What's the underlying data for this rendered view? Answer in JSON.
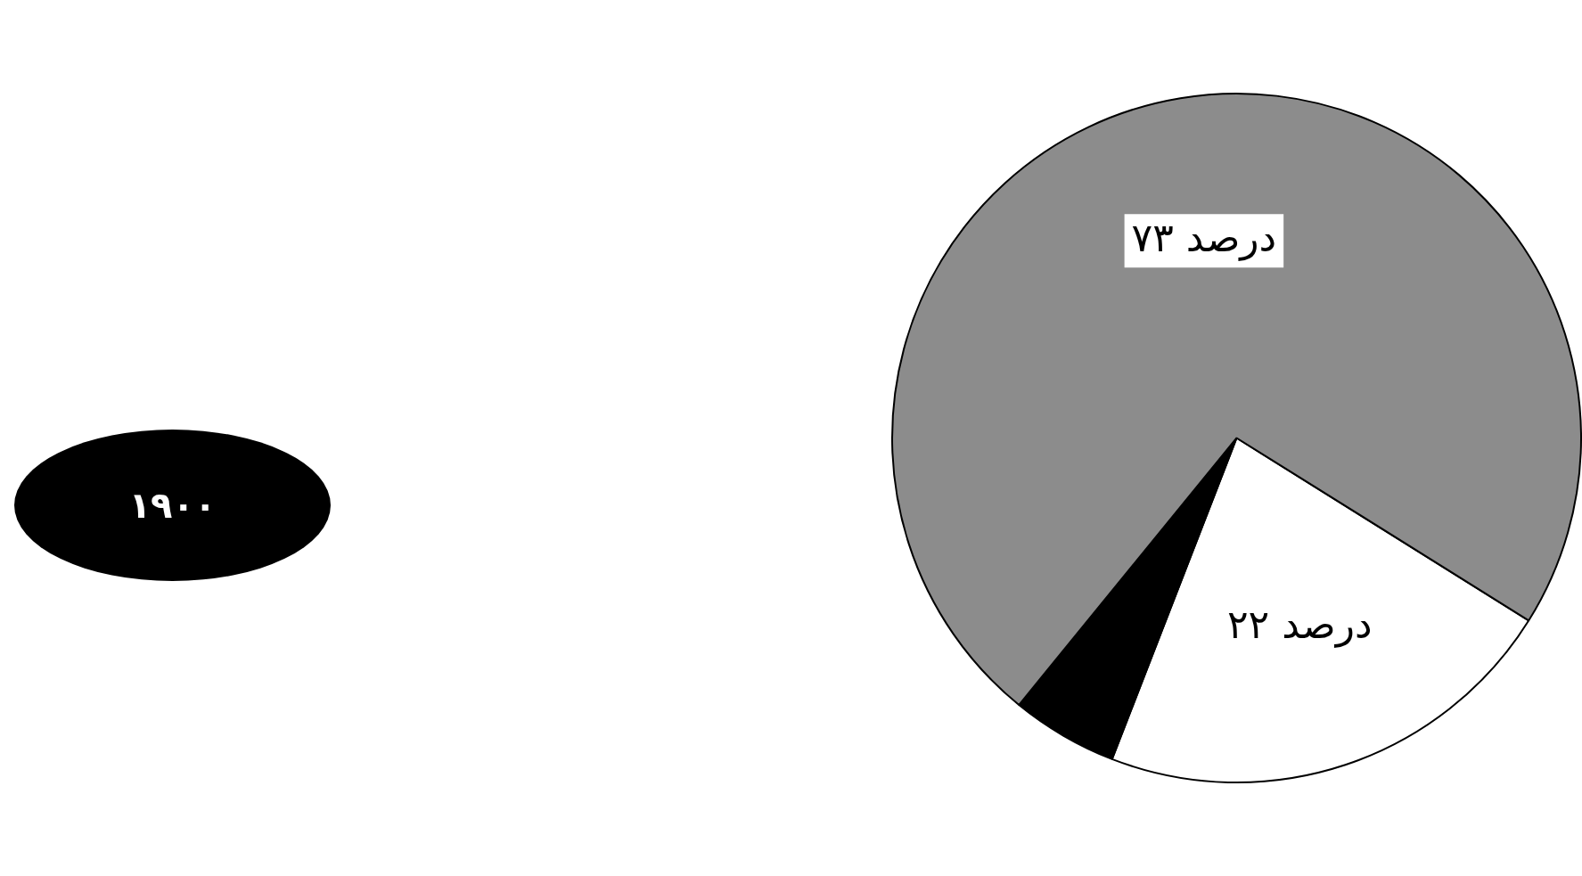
{
  "chart_data": {
    "type": "pie",
    "title": "۱۹۰۰",
    "categories": [
      null,
      null,
      null
    ],
    "values": [
      22,
      5,
      73
    ],
    "colors": [
      "#ffffff",
      "#000000",
      "#8c8c8c"
    ],
    "value_labels": [
      "۲۲ درصد",
      null,
      "۷۳ درصد"
    ]
  }
}
